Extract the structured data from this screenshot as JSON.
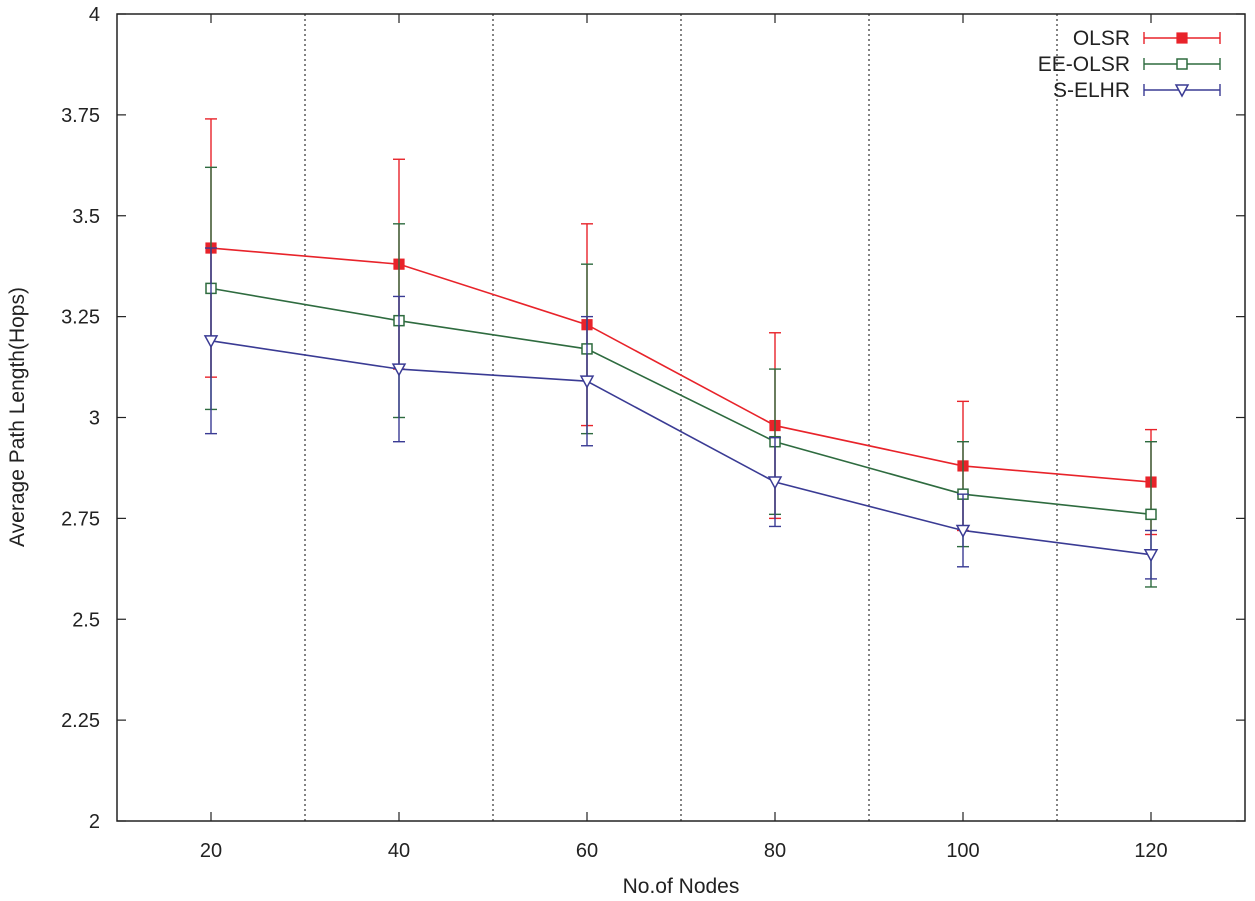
{
  "chart_data": {
    "type": "line",
    "title": "",
    "xlabel": "No.of Nodes",
    "ylabel": "Average Path Length(Hops)",
    "xlim": [
      10,
      130
    ],
    "ylim": [
      2,
      4
    ],
    "x": [
      20,
      40,
      60,
      80,
      100,
      120
    ],
    "x_ticks": [
      "20",
      "40",
      "60",
      "80",
      "100",
      "120"
    ],
    "y_ticks": [
      "2",
      "2.25",
      "2.5",
      "2.75",
      "3",
      "3.25",
      "3.5",
      "3.75",
      "4"
    ],
    "grid_x": [
      30,
      50,
      70,
      90,
      110
    ],
    "legend_position": "top-right",
    "series": [
      {
        "name": "OLSR",
        "color": "#e8232a",
        "marker": "filled-square",
        "values": [
          3.42,
          3.38,
          3.23,
          2.98,
          2.88,
          2.84
        ],
        "err_low": [
          3.1,
          3.12,
          2.98,
          2.75,
          2.72,
          2.71
        ],
        "err_high": [
          3.74,
          3.64,
          3.48,
          3.21,
          3.04,
          2.97
        ]
      },
      {
        "name": "EE-OLSR",
        "color": "#2e6b3f",
        "marker": "open-square",
        "values": [
          3.32,
          3.24,
          3.17,
          2.94,
          2.81,
          2.76
        ],
        "err_low": [
          3.02,
          3.0,
          2.96,
          2.76,
          2.68,
          2.58
        ],
        "err_high": [
          3.62,
          3.48,
          3.38,
          3.12,
          2.94,
          2.94
        ]
      },
      {
        "name": "S-ELHR",
        "color": "#3a3b94",
        "marker": "open-triangle-down",
        "values": [
          3.19,
          3.12,
          3.09,
          2.84,
          2.72,
          2.66
        ],
        "err_low": [
          2.96,
          2.94,
          2.93,
          2.73,
          2.63,
          2.6
        ],
        "err_high": [
          3.42,
          3.3,
          3.25,
          2.95,
          2.81,
          2.72
        ]
      }
    ]
  }
}
